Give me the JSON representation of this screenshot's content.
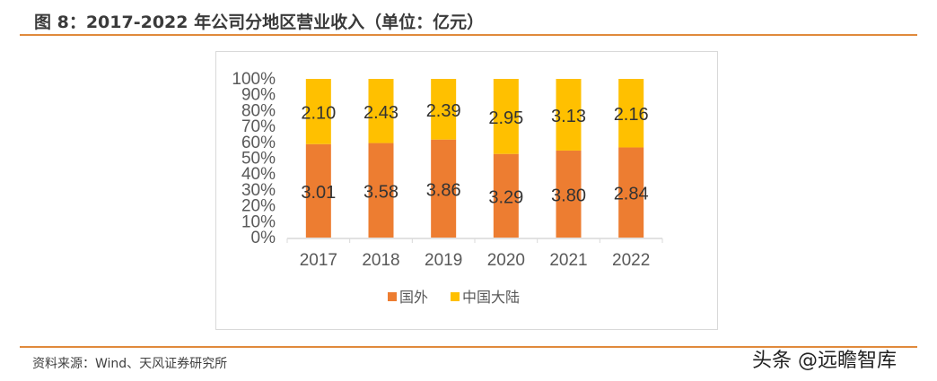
{
  "title": "图 8：2017-2022 年公司分地区营业收入（单位：亿元）",
  "source": "资料来源：Wind、天风证券研究所",
  "watermark": "头条 @远瞻智库",
  "chart_data": {
    "type": "bar",
    "stacked": "percent",
    "title": "",
    "xlabel": "",
    "ylabel": "",
    "ylim": [
      0,
      100
    ],
    "y_tick_labels": [
      "0%",
      "10%",
      "20%",
      "30%",
      "40%",
      "50%",
      "60%",
      "70%",
      "80%",
      "90%",
      "100%"
    ],
    "categories": [
      "2017",
      "2018",
      "2019",
      "2020",
      "2021",
      "2022"
    ],
    "series": [
      {
        "name": "国外",
        "color": "#ed7d31",
        "values": [
          3.01,
          3.58,
          3.86,
          3.29,
          3.8,
          2.84
        ],
        "labels": [
          "3.01",
          "3.58",
          "3.86",
          "3.29",
          "3.80",
          "2.84"
        ]
      },
      {
        "name": "中国大陆",
        "color": "#ffc000",
        "values": [
          2.1,
          2.43,
          2.39,
          2.95,
          3.13,
          2.16
        ],
        "labels": [
          "2.10",
          "2.43",
          "2.39",
          "2.95",
          "3.13",
          "2.16"
        ]
      }
    ],
    "legend": "bottom",
    "grid": false
  }
}
